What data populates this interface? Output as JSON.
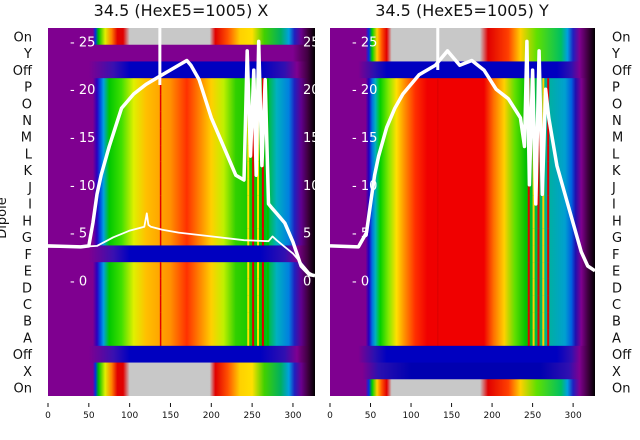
{
  "chart_data": {
    "type": "heatmap",
    "ylabel": "Dipole",
    "row_labels": [
      "On",
      "Y",
      "Off",
      "P",
      "O",
      "N",
      "M",
      "L",
      "K",
      "J",
      "I",
      "H",
      "G",
      "F",
      "E",
      "D",
      "C",
      "B",
      "A",
      "Off",
      "X",
      "On"
    ],
    "x_ticks": [
      0,
      50,
      100,
      150,
      200,
      250,
      300
    ],
    "xlim": [
      0,
      327
    ],
    "y2_ticks": [
      0,
      5,
      10,
      15,
      20,
      25
    ],
    "y2lim": [
      -12.1,
      26.4
    ],
    "panels": [
      {
        "title": "34.5 (HexE5=1005) X",
        "row_types": [
          "screen",
          "gap",
          "off",
          "beam",
          "beam",
          "beam",
          "beam",
          "beam",
          "beam",
          "beam",
          "beam",
          "beam",
          "beam",
          "off",
          "beam",
          "beam",
          "beam",
          "beam",
          "beam",
          "off",
          "screen",
          "screen"
        ],
        "series": [
          {
            "name": "profile",
            "x": [
              0,
              40,
              50,
              55,
              60,
              65,
              75,
              90,
              105,
              120,
              140,
              160,
              170,
              175,
              185,
              200,
              215,
              230,
              240,
              244,
              248,
              252,
              255,
              258,
              262,
              266,
              270,
              275,
              280,
              290,
              300,
              310,
              320,
              327
            ],
            "y": [
              3.6,
              3.5,
              3.6,
              6,
              9,
              11,
              14,
              18,
              19.5,
              20.5,
              21.5,
              22.5,
              23,
              22.5,
              21,
              17,
              14,
              11,
              10.5,
              24,
              13,
              22,
              11,
              25,
              12,
              21,
              8,
              7.5,
              7,
              6,
              4,
              1.5,
              0.6,
              0.5
            ]
          },
          {
            "name": "secondary",
            "x": [
              0,
              40,
              60,
              80,
              100,
              118,
              121,
              123,
              126,
              140,
              160,
              200,
              240,
              270,
              275,
              280,
              290,
              300,
              310,
              320,
              327
            ],
            "y": [
              3.5,
              3.5,
              3.6,
              4.5,
              5.2,
              5.6,
              7,
              5.8,
              5.6,
              5.3,
              5,
              4.6,
              4.2,
              4.1,
              4.6,
              4.2,
              3.5,
              2.8,
              1.8,
              0.8,
              0.5
            ]
          }
        ]
      },
      {
        "title": "34.5 (HexE5=1005) Y",
        "row_types": [
          "screen",
          "screen",
          "off",
          "beam",
          "beam",
          "beam",
          "beam",
          "beam",
          "beam",
          "beam",
          "beam",
          "beam",
          "beam",
          "beam",
          "beam",
          "beam",
          "beam",
          "beam",
          "beam",
          "off",
          "gap",
          "screen"
        ],
        "series": [
          {
            "name": "profile",
            "x": [
              0,
              35,
              45,
              50,
              55,
              60,
              70,
              80,
              90,
              110,
              130,
              145,
              160,
              175,
              190,
              205,
              220,
              235,
              240,
              243,
              246,
              250,
              254,
              258,
              262,
              266,
              270,
              280,
              290,
              300,
              310,
              318,
              327
            ],
            "y": [
              3.6,
              3.5,
              5,
              8,
              11,
              13,
              16,
              18,
              19.5,
              21.5,
              22.5,
              24,
              22.5,
              23,
              22,
              20,
              19,
              17,
              14,
              25,
              10,
              22,
              8,
              24,
              9,
              20,
              17,
              12,
              9,
              6,
              3,
              1.5,
              1
            ]
          }
        ]
      }
    ]
  }
}
